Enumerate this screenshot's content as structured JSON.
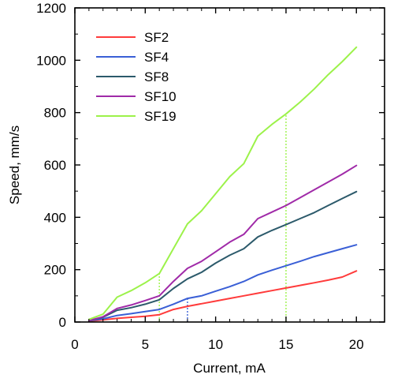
{
  "chart_data": {
    "type": "line",
    "title": "",
    "xlabel": "Current, mA",
    "ylabel": "Speed, mm/s",
    "xlim": [
      0,
      22
    ],
    "ylim": [
      0,
      1200
    ],
    "xticks": [
      0,
      5,
      10,
      15,
      20
    ],
    "yticks": [
      0,
      200,
      400,
      600,
      800,
      1000,
      1200
    ],
    "xtick_labels": [
      "0",
      "5",
      "10",
      "15",
      "20"
    ],
    "ytick_labels": [
      "0",
      "200",
      "400",
      "600",
      "800",
      "1000",
      "1200"
    ],
    "grid": false,
    "legend_position": "top-left",
    "series": [
      {
        "name": "SF2",
        "color": "#ff3b3b",
        "x": [
          1,
          2,
          3,
          4,
          5,
          6,
          7,
          8,
          9,
          10,
          11,
          12,
          13,
          14,
          15,
          16,
          17,
          18,
          19,
          20
        ],
        "y": [
          3,
          8,
          14,
          18,
          22,
          28,
          48,
          60,
          70,
          80,
          90,
          100,
          110,
          120,
          130,
          140,
          150,
          160,
          172,
          195
        ]
      },
      {
        "name": "SF4",
        "color": "#3a5fd6",
        "x": [
          1,
          2,
          3,
          4,
          5,
          6,
          7,
          8,
          9,
          10,
          11,
          12,
          13,
          14,
          15,
          16,
          17,
          18,
          19,
          20
        ],
        "y": [
          5,
          12,
          25,
          32,
          40,
          48,
          68,
          90,
          100,
          118,
          135,
          155,
          180,
          198,
          215,
          232,
          250,
          265,
          280,
          295
        ]
      },
      {
        "name": "SF8",
        "color": "#2c5a6b",
        "x": [
          1,
          2,
          3,
          4,
          5,
          6,
          7,
          8,
          9,
          10,
          11,
          12,
          13,
          14,
          15,
          16,
          17,
          18,
          19,
          20
        ],
        "y": [
          5,
          18,
          45,
          55,
          68,
          85,
          128,
          165,
          190,
          225,
          255,
          280,
          325,
          350,
          372,
          395,
          418,
          445,
          472,
          498
        ]
      },
      {
        "name": "SF10",
        "color": "#a02aa8",
        "x": [
          1,
          2,
          3,
          4,
          5,
          6,
          7,
          8,
          9,
          10,
          11,
          12,
          13,
          14,
          15,
          16,
          17,
          18,
          19,
          20
        ],
        "y": [
          6,
          20,
          52,
          65,
          82,
          100,
          155,
          205,
          232,
          268,
          305,
          335,
          395,
          420,
          445,
          475,
          505,
          535,
          565,
          598
        ]
      },
      {
        "name": "SF19",
        "color": "#9cf24a",
        "x": [
          1,
          2,
          3,
          4,
          5,
          6,
          7,
          8,
          9,
          10,
          11,
          12,
          13,
          14,
          15,
          16,
          17,
          18,
          19,
          20
        ],
        "y": [
          10,
          30,
          95,
          120,
          150,
          185,
          280,
          375,
          425,
          490,
          555,
          605,
          710,
          755,
          795,
          840,
          890,
          945,
          995,
          1050
        ]
      }
    ],
    "reference_lines": [
      {
        "x": 6,
        "y": 185,
        "color": "#9cf24a"
      },
      {
        "x": 8,
        "y": 90,
        "color": "#3a5fd6"
      },
      {
        "x": 15,
        "y": 795,
        "color": "#9cf24a"
      }
    ]
  }
}
